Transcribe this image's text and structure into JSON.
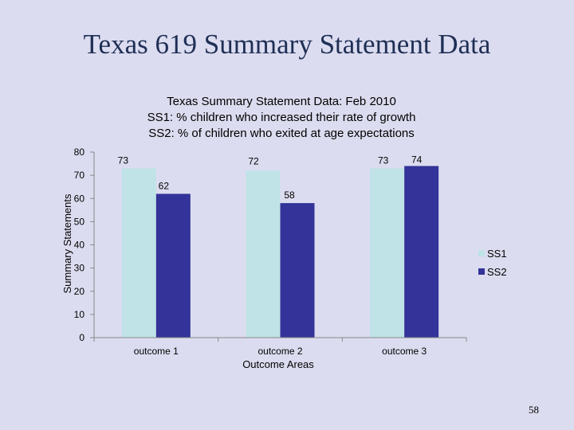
{
  "slide": {
    "title": "Texas 619 Summary Statement Data",
    "page_number": "58"
  },
  "chart_data": {
    "type": "bar",
    "title": "Texas Summary Statement Data:  Feb 2010",
    "subtitle": [
      "SS1:  % children who increased their rate of growth",
      "SS2:  % of children who exited at age expectations"
    ],
    "categories": [
      "outcome 1",
      "outcome 2",
      "outcome 3"
    ],
    "series": [
      {
        "name": "SS1",
        "values": [
          73,
          72,
          73
        ],
        "color": "#bfe3e6"
      },
      {
        "name": "SS2",
        "values": [
          62,
          58,
          74
        ],
        "color": "#333399"
      }
    ],
    "xlabel": "Outcome Areas",
    "ylabel": "Summary Statements",
    "ylim": [
      0,
      80
    ],
    "yticks": [
      0,
      10,
      20,
      30,
      40,
      50,
      60,
      70,
      80
    ],
    "legend_position": "right",
    "grid": false
  }
}
